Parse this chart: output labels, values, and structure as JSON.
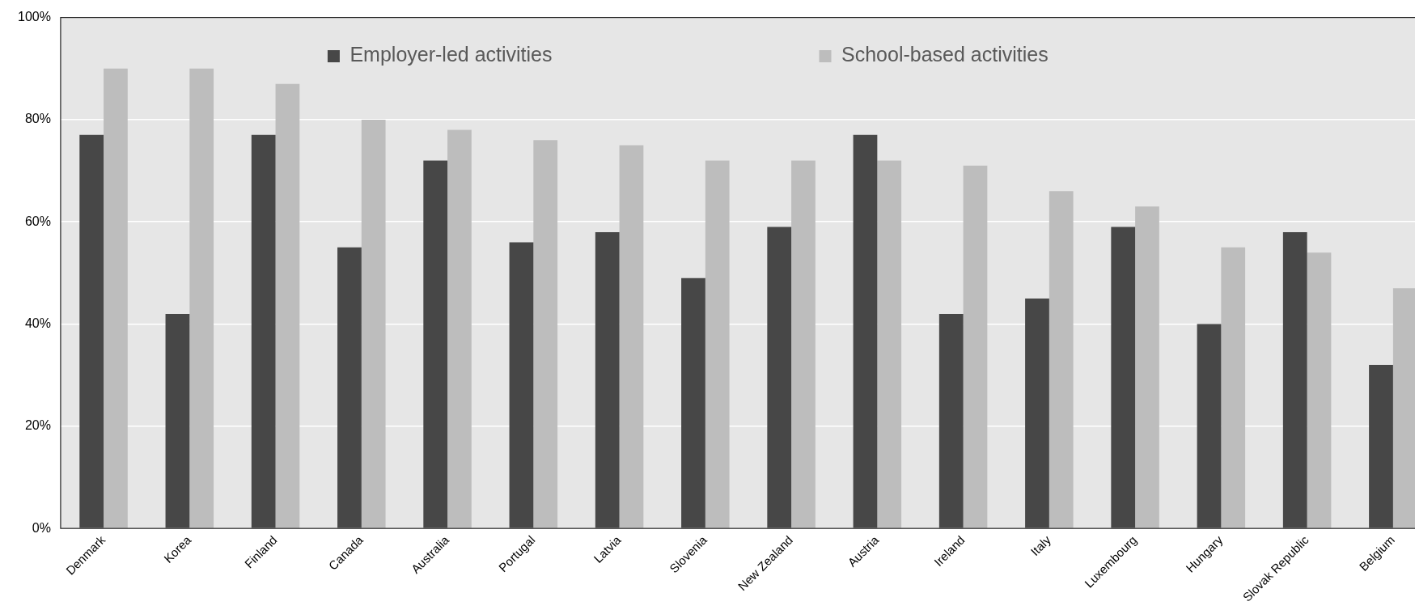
{
  "chart_data": {
    "type": "bar",
    "categories": [
      "Denmark",
      "Korea",
      "Finland",
      "Canada",
      "Australia",
      "Portugal",
      "Latvia",
      "Slovenia",
      "New Zealand",
      "Austria",
      "Ireland",
      "Italy",
      "Luxembourg",
      "Hungary",
      "Slovak Republic",
      "Belgium"
    ],
    "series": [
      {
        "name": "Employer-led activities",
        "color": "#474747",
        "values": [
          77,
          42,
          77,
          55,
          72,
          56,
          58,
          49,
          59,
          77,
          42,
          45,
          59,
          40,
          58,
          32
        ]
      },
      {
        "name": "School-based activities",
        "color": "#bdbdbd",
        "values": [
          90,
          90,
          87,
          80,
          78,
          76,
          75,
          72,
          72,
          72,
          71,
          66,
          63,
          55,
          54,
          47
        ]
      }
    ],
    "ylim": [
      0,
      100
    ],
    "yticks": [
      {
        "value": 0,
        "label": "0%"
      },
      {
        "value": 20,
        "label": "20%"
      },
      {
        "value": 40,
        "label": "40%"
      },
      {
        "value": 60,
        "label": "60%"
      },
      {
        "value": 80,
        "label": "80%"
      },
      {
        "value": 100,
        "label": "100%"
      }
    ],
    "grid": "y",
    "legend": "top"
  }
}
